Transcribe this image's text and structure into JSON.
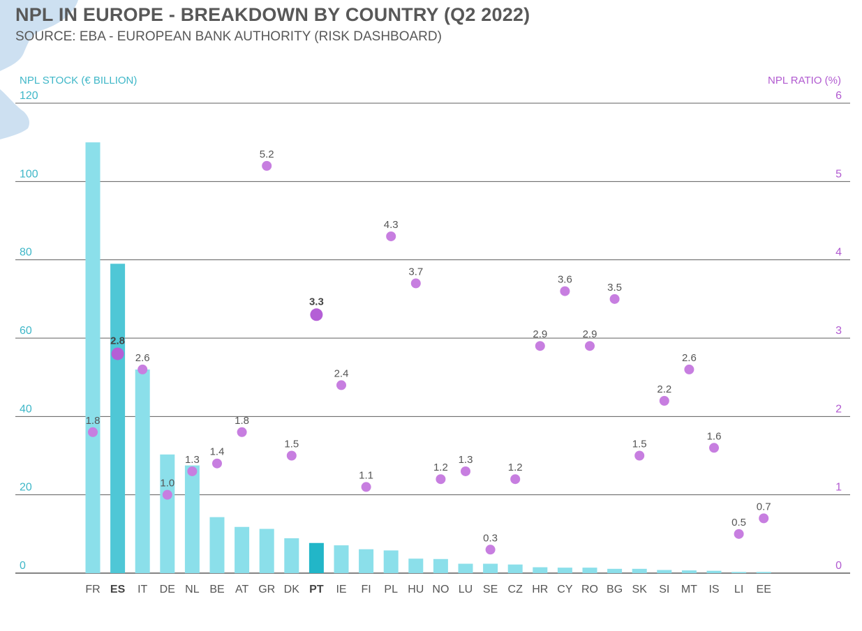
{
  "header": {
    "title": "NPL IN EUROPE - BREAKDOWN BY COUNTRY (Q2 2022)",
    "subtitle": "SOURCE: EBA - EUROPEAN BANK AUTHORITY (RISK DASHBOARD)"
  },
  "colors": {
    "bar": "#8bdfea",
    "bar_highlight_es": "#4fc7d6",
    "bar_highlight_pt": "#22b6c8",
    "dot": "#c77ee0",
    "dot_highlight": "#b45fd6",
    "left_axis": "#3fb7c8",
    "right_axis": "#b15ad0",
    "grid": "#5c5c5c",
    "text": "#555555"
  },
  "chart_data": {
    "type": "bar",
    "categories": [
      "FR",
      "ES",
      "IT",
      "DE",
      "NL",
      "BE",
      "AT",
      "GR",
      "DK",
      "PT",
      "IE",
      "FI",
      "PL",
      "HU",
      "NO",
      "LU",
      "SE",
      "CZ",
      "HR",
      "CY",
      "RO",
      "BG",
      "SK",
      "SI",
      "MT",
      "IS",
      "LI",
      "EE"
    ],
    "highlight": [
      "ES",
      "PT"
    ],
    "series": [
      {
        "type": "bar",
        "axis": "left",
        "values": [
          110,
          79,
          52,
          30.3,
          27.5,
          14.3,
          11.8,
          11.3,
          8.9,
          7.7,
          7.1,
          6.1,
          5.8,
          3.7,
          3.6,
          2.4,
          2.4,
          2.2,
          1.5,
          1.4,
          1.4,
          1.1,
          1.1,
          0.8,
          0.7,
          0.6,
          0.3,
          0.3
        ]
      },
      {
        "type": "scatter",
        "axis": "right",
        "values": [
          1.8,
          2.8,
          2.6,
          1.0,
          1.3,
          1.4,
          1.8,
          5.2,
          1.5,
          3.3,
          2.4,
          1.1,
          4.3,
          3.7,
          1.2,
          1.3,
          0.3,
          1.2,
          2.9,
          3.6,
          2.9,
          3.5,
          1.5,
          2.2,
          2.6,
          1.6,
          0.5,
          0.7
        ],
        "labels": [
          "1.8",
          "2.8",
          "2.6",
          "1.0",
          "1.3",
          "1.4",
          "1.8",
          "5.2",
          "1.5",
          "3.3",
          "2.4",
          "1.1",
          "4.3",
          "3.7",
          "1.2",
          "1.3",
          "0.3",
          "1.2",
          "2.9",
          "3.6",
          "2.9",
          "3.5",
          "1.5",
          "2.2",
          "2.6",
          "1.6",
          "0.5",
          "0.7"
        ]
      }
    ],
    "ylabel": "NPL STOCK (€ BILLION)",
    "ylabel_right": "NPL RATIO (%)",
    "ylim": [
      0,
      120
    ],
    "ylim_right": [
      0,
      6
    ],
    "yticks": [
      "0",
      "20",
      "40",
      "60",
      "80",
      "100",
      "120"
    ],
    "yticks_right": [
      "0",
      "1",
      "2",
      "3",
      "4",
      "5",
      "6"
    ],
    "grid": true
  }
}
